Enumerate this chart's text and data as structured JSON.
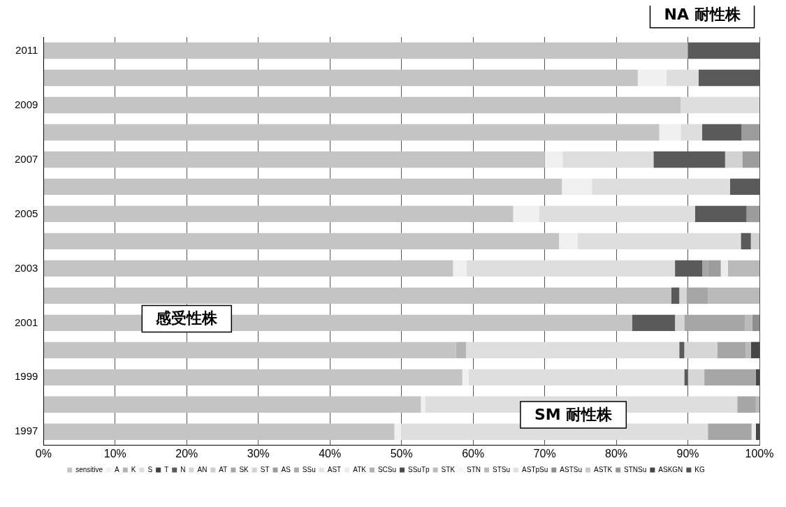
{
  "chart_data": {
    "type": "bar",
    "orientation": "horizontal",
    "stacked": true,
    "categories": [
      "2011",
      null,
      "2009",
      null,
      "2007",
      null,
      "2005",
      null,
      "2003",
      null,
      "2001",
      null,
      "1999",
      null,
      "1997"
    ],
    "series": [
      {
        "name": "sensitive",
        "color": "#c4c4c4",
        "values": [
          90,
          83,
          89,
          86,
          70,
          72.4,
          65.6,
          72,
          57.2,
          87.7,
          82.2,
          57.6,
          58.5,
          52.7,
          49
        ]
      },
      {
        "name": "A",
        "color": "#f0f0f0",
        "values": [
          0,
          4,
          0,
          3,
          2.5,
          4.2,
          3.6,
          2.6,
          1.9,
          0,
          0,
          0,
          0.9,
          0.6,
          0.9
        ]
      },
      {
        "name": "K",
        "color": "#b4b4b4",
        "values": [
          0,
          0,
          0,
          0,
          0,
          0,
          0,
          0,
          0,
          0,
          0,
          1.4,
          0,
          0,
          0
        ]
      },
      {
        "name": "S",
        "color": "#dedede",
        "values": [
          0,
          4.5,
          11,
          3,
          12.7,
          19.3,
          21.8,
          22.8,
          29.1,
          0,
          0,
          29.8,
          30.1,
          43.6,
          42.9
        ]
      },
      {
        "name": "T",
        "color": "#404040",
        "values": [
          0,
          0,
          0,
          0,
          0,
          0,
          0,
          0,
          0,
          0,
          0,
          0,
          0,
          0,
          0
        ]
      },
      {
        "name": "N",
        "color": "#5a5a5a",
        "values": [
          10,
          8.5,
          0,
          5.5,
          10,
          4.1,
          7.2,
          1.4,
          3.8,
          1.1,
          6,
          0.7,
          0.5,
          0,
          0
        ]
      },
      {
        "name": "AN",
        "color": "#d6d6d6",
        "values": [
          0,
          0,
          0,
          0,
          0,
          0,
          0,
          0,
          0,
          1,
          1.3,
          4.6,
          2.3,
          0,
          0
        ]
      },
      {
        "name": "AT",
        "color": "#cfcfcf",
        "values": [
          0,
          0,
          0,
          0,
          0,
          0,
          0,
          0,
          0,
          0,
          0,
          0,
          0,
          0,
          0
        ]
      },
      {
        "name": "SK",
        "color": "#a6a6a6",
        "values": [
          0,
          0,
          0,
          0,
          0,
          0,
          0,
          0,
          0.8,
          3,
          8.5,
          4,
          7.2,
          2.6,
          6.1
        ]
      },
      {
        "name": "ST",
        "color": "#d2d2d2",
        "values": [
          0,
          0,
          0,
          0,
          2.4,
          0,
          0,
          1.2,
          0,
          0,
          0,
          0,
          0,
          0,
          0
        ]
      },
      {
        "name": "AS",
        "color": "#9c9c9c",
        "values": [
          0,
          0,
          0,
          2.5,
          2.4,
          0,
          1.8,
          0,
          1.8,
          0,
          0,
          0,
          0,
          0,
          0
        ]
      },
      {
        "name": "SSu",
        "color": "#ababab",
        "values": [
          0,
          0,
          0,
          0,
          0,
          0,
          0,
          0,
          0,
          0,
          0,
          0,
          0,
          0,
          0
        ]
      },
      {
        "name": "AST",
        "color": "#e4e4e4",
        "values": [
          0,
          0,
          0,
          0,
          0,
          0,
          0,
          0,
          0,
          0,
          0,
          0,
          0,
          0,
          0
        ]
      },
      {
        "name": "ATK",
        "color": "#ececec",
        "values": [
          0,
          0,
          0,
          0,
          0,
          0,
          0,
          0,
          1,
          0,
          0,
          0,
          0,
          0,
          0.6
        ]
      },
      {
        "name": "SCSu",
        "color": "#b0b0b0",
        "values": [
          0,
          0,
          0,
          0,
          0,
          0,
          0,
          0,
          0,
          0,
          0,
          0,
          0,
          0,
          0
        ]
      },
      {
        "name": "SSuTp",
        "color": "#4c4c4c",
        "values": [
          0,
          0,
          0,
          0,
          0,
          0,
          0,
          0,
          0,
          0,
          0,
          0,
          0,
          0,
          0
        ]
      },
      {
        "name": "STK",
        "color": "#bcbcbc",
        "values": [
          0,
          0,
          0,
          0,
          0,
          0,
          0,
          0,
          0,
          0,
          0,
          0,
          0,
          0,
          0
        ]
      },
      {
        "name": "STN",
        "color": "#f6f6f6",
        "values": [
          0,
          0,
          0,
          0,
          0,
          0,
          0,
          0,
          0,
          0,
          0,
          0,
          0,
          0,
          0
        ]
      },
      {
        "name": "STSu",
        "color": "#bababa",
        "values": [
          0,
          0,
          0,
          0,
          0,
          0,
          0,
          0,
          4.4,
          7.2,
          1,
          0.7,
          0,
          0.5,
          0
        ]
      },
      {
        "name": "ASTpSu",
        "color": "#e0e0e0",
        "values": [
          0,
          0,
          0,
          0,
          0,
          0,
          0,
          0,
          0,
          0,
          0,
          0,
          0,
          0,
          0
        ]
      },
      {
        "name": "ASTSu",
        "color": "#8e8e8e",
        "values": [
          0,
          0,
          0,
          0,
          0,
          0,
          0,
          0,
          0,
          0,
          1,
          0,
          0,
          0,
          0
        ]
      },
      {
        "name": "ASTK",
        "color": "#c8c8c8",
        "values": [
          0,
          0,
          0,
          0,
          0,
          0,
          0,
          0,
          0,
          0,
          0,
          0,
          0,
          0,
          0
        ]
      },
      {
        "name": "STNSu",
        "color": "#969696",
        "values": [
          0,
          0,
          0,
          0,
          0,
          0,
          0,
          0,
          0,
          0,
          0,
          0,
          0,
          0,
          0
        ]
      },
      {
        "name": "ASKGN",
        "color": "#464646",
        "values": [
          0,
          0,
          0,
          0,
          0,
          0,
          0,
          0,
          0,
          0,
          0,
          1.2,
          0.5,
          0,
          0.5
        ]
      },
      {
        "name": "KG",
        "color": "#525252",
        "values": [
          0,
          0,
          0,
          0,
          0,
          0,
          0,
          0,
          0,
          0,
          0,
          0,
          0,
          0,
          0
        ]
      }
    ],
    "xlim": [
      0,
      100
    ],
    "xticks": [
      {
        "value": 0,
        "label": "0%"
      },
      {
        "value": 10,
        "label": "10%"
      },
      {
        "value": 20,
        "label": "20%"
      },
      {
        "value": 30,
        "label": "30%"
      },
      {
        "value": 40,
        "label": "40%"
      },
      {
        "value": 50,
        "label": "50%"
      },
      {
        "value": 60,
        "label": "60%"
      },
      {
        "value": 70,
        "label": "70%"
      },
      {
        "value": 80,
        "label": "80%"
      },
      {
        "value": 90,
        "label": "90%"
      },
      {
        "value": 100,
        "label": "100%"
      }
    ],
    "grid": "x",
    "legend": "bottom",
    "annotations": [
      "NA 耐性株",
      "感受性株",
      "SM 耐性株"
    ]
  }
}
